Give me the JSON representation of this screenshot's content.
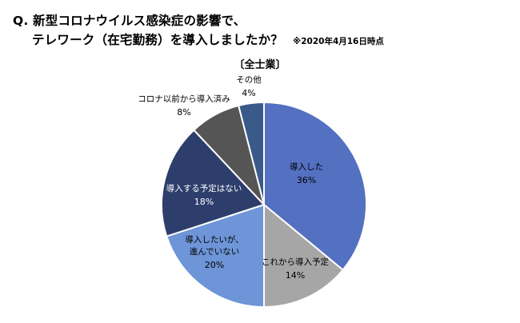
{
  "header": {
    "question_line1": "Q. 新型コロナウイルス感染症の影響で、",
    "question_line2": "テレワーク（在宅勤務）を導入しましたか？",
    "date_note": "※2020年4月16日時点"
  },
  "chart_data": {
    "type": "pie",
    "title": "",
    "subtitle": "〔全士業〕",
    "start_angle_deg": 0,
    "direction": "clockwise",
    "slices": [
      {
        "label": "導入した",
        "value": 36,
        "display": "36%",
        "color": "#5470c1",
        "label_color": "#000000"
      },
      {
        "label": "これから導入予定",
        "value": 14,
        "display": "14%",
        "color": "#a6a6a6",
        "label_color": "#000000"
      },
      {
        "label": "導入したいが、進んでいない",
        "value": 20,
        "display": "20%",
        "color": "#6d95d8",
        "label_color": "#000000"
      },
      {
        "label": "導入する予定はない",
        "value": 18,
        "display": "18%",
        "color": "#2e3e6c",
        "label_color": "#ffffff"
      },
      {
        "label": "コロナ以前から導入済み",
        "value": 8,
        "display": "8%",
        "color": "#555555",
        "label_color": "#000000"
      },
      {
        "label": "その他",
        "value": 4,
        "display": "4%",
        "color": "#3a5a8a",
        "label_color": "#000000"
      }
    ],
    "legend": "none"
  }
}
